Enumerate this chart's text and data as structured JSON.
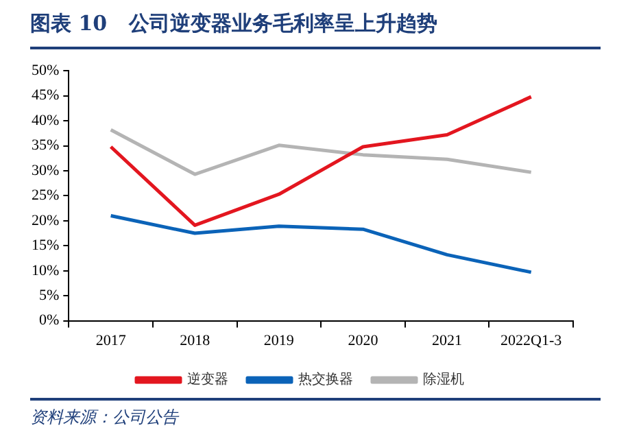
{
  "chart_data": {
    "type": "line",
    "title": "图表 10   公司逆变器业务毛利率呈上升趋势",
    "categories": [
      "2017",
      "2018",
      "2019",
      "2020",
      "2021",
      "2022Q1-3"
    ],
    "series": [
      {
        "name": "逆变器",
        "color": "#e3161f",
        "values": [
          34.8,
          19.1,
          25.3,
          34.8,
          37.2,
          44.8
        ]
      },
      {
        "name": "热交换器",
        "color": "#0b63b8",
        "values": [
          21.0,
          17.5,
          18.9,
          18.3,
          13.2,
          9.7
        ]
      },
      {
        "name": "除湿机",
        "color": "#b4b4b4",
        "values": [
          38.2,
          29.3,
          35.1,
          33.2,
          32.3,
          29.7
        ]
      }
    ],
    "ylim": [
      0,
      50
    ],
    "yticks": [
      {
        "value": 0,
        "label": "0%"
      },
      {
        "value": 5,
        "label": "5%"
      },
      {
        "value": 10,
        "label": "10%"
      },
      {
        "value": 15,
        "label": "15%"
      },
      {
        "value": 20,
        "label": "20%"
      },
      {
        "value": 25,
        "label": "25%"
      },
      {
        "value": 30,
        "label": "30%"
      },
      {
        "value": 35,
        "label": "35%"
      },
      {
        "value": 40,
        "label": "40%"
      },
      {
        "value": 45,
        "label": "45%"
      },
      {
        "value": 50,
        "label": "50%"
      }
    ],
    "grid": false,
    "legend": "bottom",
    "marker": "none",
    "line_style": "solid",
    "annotations": [
      "资料来源：公司公告"
    ]
  }
}
